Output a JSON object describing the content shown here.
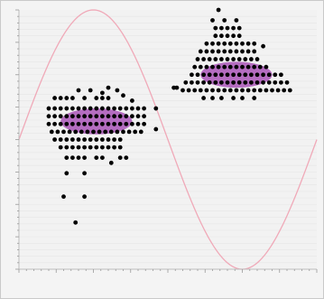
{
  "window": {
    "title": ""
  },
  "chart_data": {
    "type": "scatter",
    "title": "",
    "xlabel": "",
    "ylabel": "",
    "xlim": [
      0,
      100
    ],
    "ylim": [
      0,
      100
    ],
    "grid": true,
    "background_color": "#f2f2f2",
    "grid_color": "#e6e6e6",
    "curve_color": "#f0a9b8",
    "point_color": "#000000",
    "density_color": "#a040b0",
    "reference_curve": {
      "kind": "sine",
      "amplitude": 50,
      "offset": 50,
      "period": 100,
      "phase_deg": 0
    },
    "series": [
      {
        "cluster": "left",
        "points": [
          [
            10,
            62
          ],
          [
            12,
            62
          ],
          [
            14,
            62
          ],
          [
            16,
            62
          ],
          [
            18,
            62
          ],
          [
            20,
            62
          ],
          [
            22,
            62
          ],
          [
            24,
            62
          ],
          [
            26,
            62
          ],
          [
            28,
            62
          ],
          [
            30,
            62
          ],
          [
            32,
            62
          ],
          [
            34,
            62
          ],
          [
            36,
            62
          ],
          [
            38,
            62
          ],
          [
            40,
            62
          ],
          [
            42,
            62
          ],
          [
            10,
            59
          ],
          [
            12,
            59
          ],
          [
            14,
            59
          ],
          [
            16,
            59
          ],
          [
            18,
            59
          ],
          [
            20,
            59
          ],
          [
            22,
            59
          ],
          [
            24,
            59
          ],
          [
            26,
            59
          ],
          [
            28,
            59
          ],
          [
            30,
            59
          ],
          [
            32,
            59
          ],
          [
            34,
            59
          ],
          [
            36,
            59
          ],
          [
            38,
            59
          ],
          [
            40,
            59
          ],
          [
            42,
            59
          ],
          [
            10,
            56
          ],
          [
            12,
            56
          ],
          [
            14,
            56
          ],
          [
            16,
            56
          ],
          [
            18,
            56
          ],
          [
            20,
            56
          ],
          [
            22,
            56
          ],
          [
            24,
            56
          ],
          [
            26,
            56
          ],
          [
            28,
            56
          ],
          [
            30,
            56
          ],
          [
            32,
            56
          ],
          [
            34,
            56
          ],
          [
            36,
            56
          ],
          [
            38,
            56
          ],
          [
            40,
            56
          ],
          [
            42,
            56
          ],
          [
            11,
            53
          ],
          [
            13,
            53
          ],
          [
            15,
            53
          ],
          [
            17,
            53
          ],
          [
            19,
            53
          ],
          [
            21,
            53
          ],
          [
            23,
            53
          ],
          [
            25,
            53
          ],
          [
            27,
            53
          ],
          [
            29,
            53
          ],
          [
            31,
            53
          ],
          [
            33,
            53
          ],
          [
            35,
            53
          ],
          [
            37,
            53
          ],
          [
            39,
            53
          ],
          [
            41,
            53
          ],
          [
            12,
            50
          ],
          [
            14,
            50
          ],
          [
            16,
            50
          ],
          [
            18,
            50
          ],
          [
            20,
            50
          ],
          [
            22,
            50
          ],
          [
            24,
            50
          ],
          [
            26,
            50
          ],
          [
            28,
            50
          ],
          [
            30,
            50
          ],
          [
            32,
            50
          ],
          [
            34,
            50
          ],
          [
            14,
            47
          ],
          [
            16,
            47
          ],
          [
            18,
            47
          ],
          [
            20,
            47
          ],
          [
            22,
            47
          ],
          [
            24,
            47
          ],
          [
            26,
            47
          ],
          [
            28,
            47
          ],
          [
            30,
            47
          ],
          [
            32,
            47
          ],
          [
            34,
            47
          ],
          [
            16,
            43
          ],
          [
            18,
            43
          ],
          [
            20,
            43
          ],
          [
            22,
            43
          ],
          [
            26,
            43
          ],
          [
            28,
            43
          ],
          [
            34,
            43
          ],
          [
            36,
            43
          ],
          [
            12,
            66
          ],
          [
            14,
            66
          ],
          [
            16,
            66
          ],
          [
            18,
            66
          ],
          [
            22,
            66
          ],
          [
            26,
            66
          ],
          [
            28,
            66
          ],
          [
            30,
            66
          ],
          [
            20,
            69
          ],
          [
            24,
            69
          ],
          [
            28,
            68
          ],
          [
            30,
            70
          ],
          [
            33,
            69
          ],
          [
            35,
            67
          ],
          [
            38,
            65
          ],
          [
            46,
            62
          ],
          [
            46,
            54
          ],
          [
            16,
            37
          ],
          [
            22,
            37
          ],
          [
            15,
            28
          ],
          [
            22,
            28
          ],
          [
            19,
            18
          ],
          [
            31,
            41
          ]
        ]
      },
      {
        "cluster": "right",
        "points": [
          [
            55,
            69
          ],
          [
            57,
            69
          ],
          [
            59,
            69
          ],
          [
            61,
            69
          ],
          [
            63,
            69
          ],
          [
            65,
            69
          ],
          [
            67,
            69
          ],
          [
            69,
            69
          ],
          [
            71,
            69
          ],
          [
            73,
            69
          ],
          [
            75,
            69
          ],
          [
            77,
            69
          ],
          [
            79,
            69
          ],
          [
            81,
            69
          ],
          [
            83,
            69
          ],
          [
            85,
            69
          ],
          [
            87,
            69
          ],
          [
            89,
            69
          ],
          [
            91,
            69
          ],
          [
            56,
            72
          ],
          [
            58,
            72
          ],
          [
            60,
            72
          ],
          [
            62,
            72
          ],
          [
            64,
            72
          ],
          [
            66,
            72
          ],
          [
            68,
            72
          ],
          [
            70,
            72
          ],
          [
            72,
            72
          ],
          [
            74,
            72
          ],
          [
            76,
            72
          ],
          [
            78,
            72
          ],
          [
            80,
            72
          ],
          [
            82,
            72
          ],
          [
            84,
            72
          ],
          [
            86,
            72
          ],
          [
            88,
            72
          ],
          [
            90,
            72
          ],
          [
            58,
            75
          ],
          [
            60,
            75
          ],
          [
            62,
            75
          ],
          [
            64,
            75
          ],
          [
            66,
            75
          ],
          [
            68,
            75
          ],
          [
            70,
            75
          ],
          [
            72,
            75
          ],
          [
            74,
            75
          ],
          [
            76,
            75
          ],
          [
            78,
            75
          ],
          [
            80,
            75
          ],
          [
            82,
            75
          ],
          [
            84,
            75
          ],
          [
            86,
            75
          ],
          [
            88,
            75
          ],
          [
            59,
            78
          ],
          [
            61,
            78
          ],
          [
            63,
            78
          ],
          [
            65,
            78
          ],
          [
            67,
            78
          ],
          [
            69,
            78
          ],
          [
            71,
            78
          ],
          [
            73,
            78
          ],
          [
            75,
            78
          ],
          [
            77,
            78
          ],
          [
            79,
            78
          ],
          [
            81,
            78
          ],
          [
            83,
            78
          ],
          [
            60,
            81
          ],
          [
            62,
            81
          ],
          [
            64,
            81
          ],
          [
            66,
            81
          ],
          [
            68,
            81
          ],
          [
            70,
            81
          ],
          [
            72,
            81
          ],
          [
            74,
            81
          ],
          [
            76,
            81
          ],
          [
            78,
            81
          ],
          [
            80,
            81
          ],
          [
            61,
            84
          ],
          [
            63,
            84
          ],
          [
            65,
            84
          ],
          [
            67,
            84
          ],
          [
            69,
            84
          ],
          [
            71,
            84
          ],
          [
            73,
            84
          ],
          [
            75,
            84
          ],
          [
            77,
            84
          ],
          [
            79,
            84
          ],
          [
            63,
            87
          ],
          [
            65,
            87
          ],
          [
            67,
            87
          ],
          [
            69,
            87
          ],
          [
            71,
            87
          ],
          [
            73,
            87
          ],
          [
            75,
            87
          ],
          [
            77,
            87
          ],
          [
            79,
            87
          ],
          [
            82,
            86
          ],
          [
            66,
            90
          ],
          [
            68,
            90
          ],
          [
            70,
            90
          ],
          [
            72,
            90
          ],
          [
            74,
            90
          ],
          [
            66,
            93
          ],
          [
            68,
            93
          ],
          [
            70,
            93
          ],
          [
            72,
            93
          ],
          [
            74,
            93
          ],
          [
            65,
            96
          ],
          [
            69,
            96
          ],
          [
            73,
            96
          ],
          [
            67,
            100
          ],
          [
            52,
            70
          ],
          [
            53,
            70
          ],
          [
            62,
            66
          ],
          [
            65,
            66
          ],
          [
            68,
            66
          ],
          [
            72,
            66
          ],
          [
            75,
            66
          ],
          [
            79,
            66
          ]
        ]
      }
    ]
  }
}
